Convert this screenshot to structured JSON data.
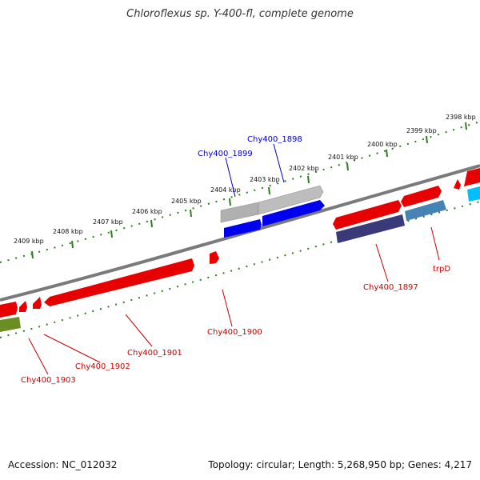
{
  "title": "Chloroflexus sp. Y-400-fl, complete genome",
  "footer": {
    "accession": "Accession: NC_012032",
    "stats": "Topology: circular; Length: 5,268,950 bp; Genes: 4,217"
  },
  "colors": {
    "backbone": "#7a7a7a",
    "ticks": "#2e7d1e",
    "red_gene": "#e60000",
    "blue_gene": "#0000ee",
    "gray_gene": "#b0b0b0",
    "navy_gene": "#3a3a7a",
    "steel_gene": "#4682b4",
    "cyan_gene": "#00bfff",
    "olive_gene": "#6b8e23",
    "red_label": "#cc0000",
    "blue_label": "#0000cc"
  },
  "kbp_ticks": [
    "2398 kbp",
    "2399 kbp",
    "2400 kbp",
    "2401 kbp",
    "2402 kbp",
    "2403 kbp",
    "2404 kbp",
    "2405 kbp",
    "2406 kbp",
    "2407 kbp",
    "2408 kbp",
    "2409 kbp"
  ],
  "gene_labels": {
    "chy1899": "Chy400_1899",
    "chy1898": "Chy400_1898",
    "chy1897": "Chy400_1897",
    "trpD": "trpD",
    "chy1900": "Chy400_1900",
    "chy1901": "Chy400_1901",
    "chy1902": "Chy400_1902",
    "chy1903": "Chy400_1903"
  }
}
